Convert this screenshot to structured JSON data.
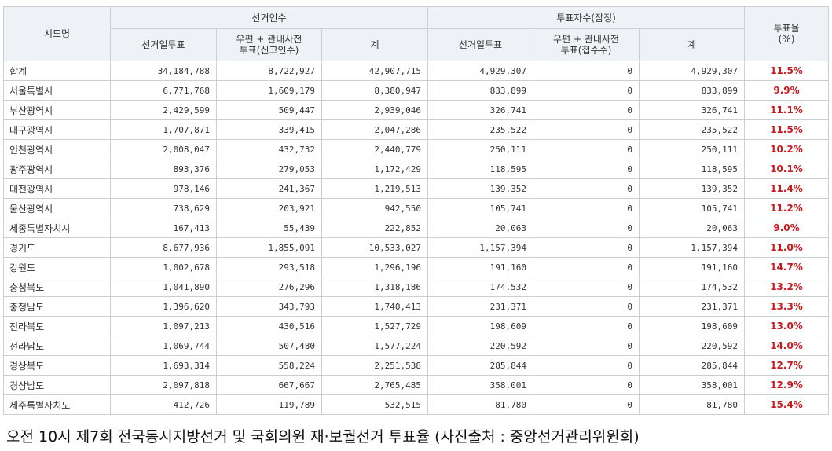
{
  "table": {
    "headers": {
      "region": "시도명",
      "electorate_group": "선거인수",
      "turnout_group": "투표자수(잠정)",
      "rate_line1": "투표율",
      "rate_line2": "(%)",
      "election_day": "선거일투표",
      "postal_line1": "우편 + 관내사전",
      "postal_line2_electorate": "투표(신고인수)",
      "postal_line2_turnout": "투표(접수수)",
      "total": "계"
    },
    "rows": [
      {
        "region": "합계",
        "e_day": "34,184,788",
        "e_postal": "8,722,927",
        "e_total": "42,907,715",
        "t_day": "4,929,307",
        "t_postal": "0",
        "t_total": "4,929,307",
        "rate": "11.5%"
      },
      {
        "region": "서울특별시",
        "e_day": "6,771,768",
        "e_postal": "1,609,179",
        "e_total": "8,380,947",
        "t_day": "833,899",
        "t_postal": "0",
        "t_total": "833,899",
        "rate": "9.9%"
      },
      {
        "region": "부산광역시",
        "e_day": "2,429,599",
        "e_postal": "509,447",
        "e_total": "2,939,046",
        "t_day": "326,741",
        "t_postal": "0",
        "t_total": "326,741",
        "rate": "11.1%"
      },
      {
        "region": "대구광역시",
        "e_day": "1,707,871",
        "e_postal": "339,415",
        "e_total": "2,047,286",
        "t_day": "235,522",
        "t_postal": "0",
        "t_total": "235,522",
        "rate": "11.5%"
      },
      {
        "region": "인천광역시",
        "e_day": "2,008,047",
        "e_postal": "432,732",
        "e_total": "2,440,779",
        "t_day": "250,111",
        "t_postal": "0",
        "t_total": "250,111",
        "rate": "10.2%"
      },
      {
        "region": "광주광역시",
        "e_day": "893,376",
        "e_postal": "279,053",
        "e_total": "1,172,429",
        "t_day": "118,595",
        "t_postal": "0",
        "t_total": "118,595",
        "rate": "10.1%"
      },
      {
        "region": "대전광역시",
        "e_day": "978,146",
        "e_postal": "241,367",
        "e_total": "1,219,513",
        "t_day": "139,352",
        "t_postal": "0",
        "t_total": "139,352",
        "rate": "11.4%"
      },
      {
        "region": "울산광역시",
        "e_day": "738,629",
        "e_postal": "203,921",
        "e_total": "942,550",
        "t_day": "105,741",
        "t_postal": "0",
        "t_total": "105,741",
        "rate": "11.2%"
      },
      {
        "region": "세종특별자치시",
        "e_day": "167,413",
        "e_postal": "55,439",
        "e_total": "222,852",
        "t_day": "20,063",
        "t_postal": "0",
        "t_total": "20,063",
        "rate": "9.0%"
      },
      {
        "region": "경기도",
        "e_day": "8,677,936",
        "e_postal": "1,855,091",
        "e_total": "10,533,027",
        "t_day": "1,157,394",
        "t_postal": "0",
        "t_total": "1,157,394",
        "rate": "11.0%"
      },
      {
        "region": "강원도",
        "e_day": "1,002,678",
        "e_postal": "293,518",
        "e_total": "1,296,196",
        "t_day": "191,160",
        "t_postal": "0",
        "t_total": "191,160",
        "rate": "14.7%"
      },
      {
        "region": "충청북도",
        "e_day": "1,041,890",
        "e_postal": "276,296",
        "e_total": "1,318,186",
        "t_day": "174,532",
        "t_postal": "0",
        "t_total": "174,532",
        "rate": "13.2%"
      },
      {
        "region": "충청남도",
        "e_day": "1,396,620",
        "e_postal": "343,793",
        "e_total": "1,740,413",
        "t_day": "231,371",
        "t_postal": "0",
        "t_total": "231,371",
        "rate": "13.3%"
      },
      {
        "region": "전라북도",
        "e_day": "1,097,213",
        "e_postal": "430,516",
        "e_total": "1,527,729",
        "t_day": "198,609",
        "t_postal": "0",
        "t_total": "198,609",
        "rate": "13.0%"
      },
      {
        "region": "전라남도",
        "e_day": "1,069,744",
        "e_postal": "507,480",
        "e_total": "1,577,224",
        "t_day": "220,592",
        "t_postal": "0",
        "t_total": "220,592",
        "rate": "14.0%"
      },
      {
        "region": "경상북도",
        "e_day": "1,693,314",
        "e_postal": "558,224",
        "e_total": "2,251,538",
        "t_day": "285,844",
        "t_postal": "0",
        "t_total": "285,844",
        "rate": "12.7%"
      },
      {
        "region": "경상남도",
        "e_day": "2,097,818",
        "e_postal": "667,667",
        "e_total": "2,765,485",
        "t_day": "358,001",
        "t_postal": "0",
        "t_total": "358,001",
        "rate": "12.9%"
      },
      {
        "region": "제주특별자치도",
        "e_day": "412,726",
        "e_postal": "119,789",
        "e_total": "532,515",
        "t_day": "81,780",
        "t_postal": "0",
        "t_total": "81,780",
        "rate": "15.4%"
      }
    ]
  },
  "caption": "오전 10시 제7회 전국동시지방선거 및 국회의원 재·보궐선거 투표율 (사진출처 : 중앙선거관리위원회)",
  "colors": {
    "header_bg": "#eef1f5",
    "border": "#c9cfd6",
    "rate_text": "#c8191d"
  }
}
